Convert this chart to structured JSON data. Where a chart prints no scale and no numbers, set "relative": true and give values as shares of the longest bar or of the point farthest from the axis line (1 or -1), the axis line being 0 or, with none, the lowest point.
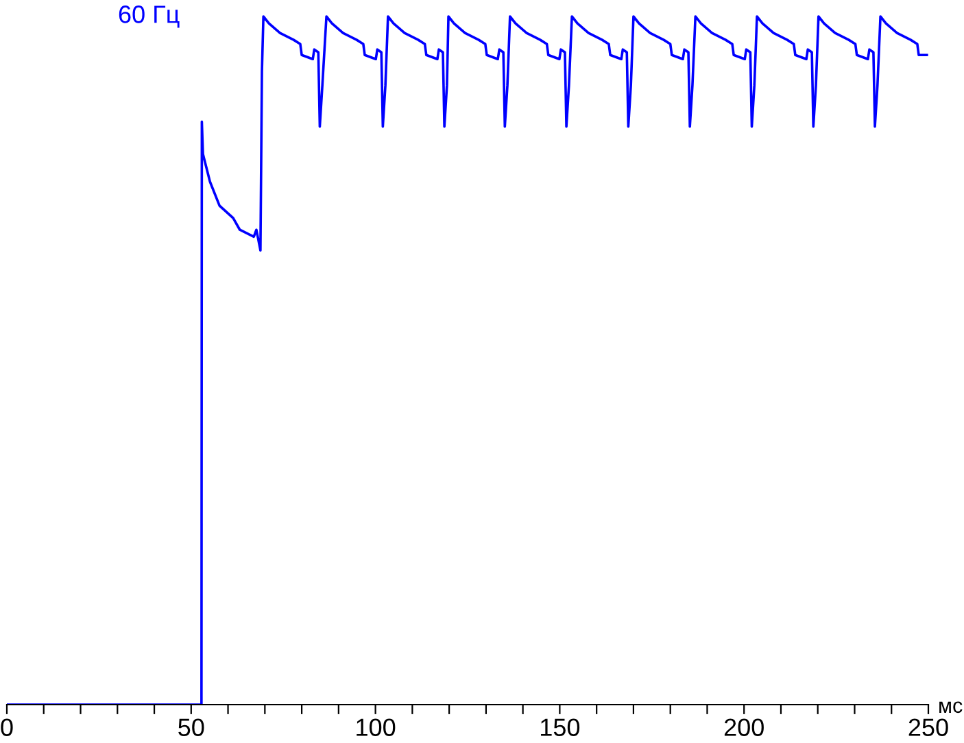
{
  "chart_data": {
    "type": "line",
    "title": "60 Гц",
    "xlabel": "мс",
    "relative": true,
    "grid": false,
    "legend": false,
    "marker": "none",
    "line_style": "solid",
    "xlim": [
      0,
      250
    ],
    "xticks": [
      0,
      {
        "value": 10,
        "label": null
      },
      {
        "value": 20,
        "label": null
      },
      {
        "value": 30,
        "label": null
      },
      {
        "value": 40,
        "label": null
      },
      50,
      {
        "value": 60,
        "label": null
      },
      {
        "value": 70,
        "label": null
      },
      {
        "value": 80,
        "label": null
      },
      {
        "value": 90,
        "label": null
      },
      100,
      {
        "value": 110,
        "label": null
      },
      {
        "value": 120,
        "label": null
      },
      {
        "value": 130,
        "label": null
      },
      {
        "value": 140,
        "label": null
      },
      150,
      {
        "value": 160,
        "label": null
      },
      {
        "value": 170,
        "label": null
      },
      {
        "value": 180,
        "label": null
      },
      {
        "value": 190,
        "label": null
      },
      200,
      {
        "value": 210,
        "label": null
      },
      {
        "value": 220,
        "label": null
      },
      {
        "value": 230,
        "label": null
      },
      {
        "value": 240,
        "label": null
      },
      250
    ],
    "series": [
      {
        "color": "#0000ff",
        "x": [
          0,
          52.8,
          52.9,
          53.2,
          55.1,
          57.7,
          61.4,
          63.2,
          67.0,
          67.7,
          68.8,
          69.2,
          69.6,
          71.1,
          74.1,
          77.8,
          79.6,
          80.0,
          83.0,
          83.4,
          84.5,
          84.9,
          85.6,
          86.7,
          88.2,
          91.2,
          94.9,
          96.7,
          97.1,
          100.1,
          100.5,
          101.6,
          102.0,
          102.7,
          103.4,
          104.9,
          107.9,
          111.6,
          113.4,
          113.8,
          116.8,
          117.2,
          118.3,
          118.7,
          119.4,
          119.8,
          121.3,
          124.3,
          128.0,
          129.8,
          130.2,
          133.2,
          133.6,
          134.7,
          135.1,
          135.8,
          136.5,
          138.0,
          141.0,
          144.7,
          146.5,
          146.9,
          149.9,
          150.3,
          151.4,
          151.8,
          152.5,
          153.3,
          154.8,
          157.8,
          161.5,
          163.3,
          163.7,
          166.7,
          167.1,
          168.2,
          168.6,
          169.3,
          170.0,
          171.5,
          174.5,
          178.2,
          180.0,
          180.4,
          183.4,
          183.8,
          184.9,
          185.3,
          186.0,
          186.8,
          188.3,
          191.3,
          195.0,
          196.8,
          197.2,
          200.2,
          200.6,
          201.7,
          202.1,
          202.8,
          203.5,
          205.0,
          208.0,
          211.7,
          213.5,
          213.9,
          216.9,
          217.3,
          218.4,
          218.8,
          219.5,
          220.2,
          221.7,
          224.7,
          228.4,
          230.2,
          230.6,
          233.6,
          234.0,
          235.1,
          235.5,
          236.2,
          237.0,
          238.5,
          241.5,
          245.2,
          247.0,
          247.4,
          249.6
        ],
        "values": [
          0,
          0,
          0.847,
          0.8,
          0.76,
          0.725,
          0.707,
          0.69,
          0.68,
          0.69,
          0.66,
          0.92,
          1.0,
          0.99,
          0.976,
          0.966,
          0.96,
          0.944,
          0.938,
          0.952,
          0.948,
          0.84,
          0.9,
          1.0,
          0.99,
          0.976,
          0.966,
          0.96,
          0.944,
          0.938,
          0.952,
          0.948,
          0.84,
          0.9,
          1.0,
          0.99,
          0.976,
          0.966,
          0.96,
          0.944,
          0.938,
          0.952,
          0.948,
          0.84,
          0.9,
          1.0,
          0.99,
          0.976,
          0.966,
          0.96,
          0.944,
          0.938,
          0.952,
          0.948,
          0.84,
          0.9,
          1.0,
          0.99,
          0.976,
          0.966,
          0.96,
          0.944,
          0.938,
          0.952,
          0.948,
          0.84,
          0.9,
          1.0,
          0.99,
          0.976,
          0.966,
          0.96,
          0.944,
          0.938,
          0.952,
          0.948,
          0.84,
          0.9,
          1.0,
          0.99,
          0.976,
          0.966,
          0.96,
          0.944,
          0.938,
          0.952,
          0.948,
          0.84,
          0.9,
          1.0,
          0.99,
          0.976,
          0.966,
          0.96,
          0.944,
          0.938,
          0.952,
          0.948,
          0.84,
          0.9,
          1.0,
          0.99,
          0.976,
          0.966,
          0.96,
          0.944,
          0.938,
          0.952,
          0.948,
          0.84,
          0.9,
          1.0,
          0.99,
          0.976,
          0.966,
          0.96,
          0.944,
          0.938,
          0.952,
          0.948,
          0.84,
          0.9,
          1.0,
          0.99,
          0.976,
          0.966,
          0.96,
          0.944,
          0.944
        ]
      }
    ]
  }
}
